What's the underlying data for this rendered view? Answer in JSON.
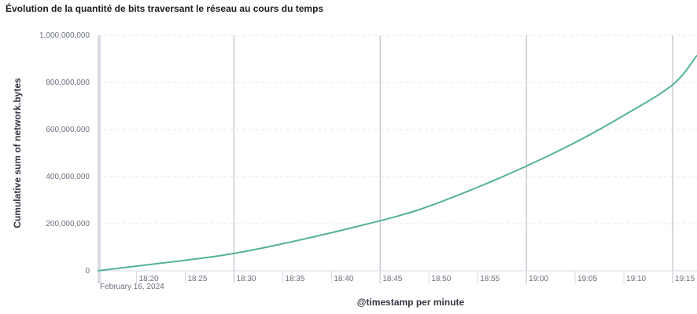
{
  "title": "Évolution de la quantité de bits traversant le réseau au cours du temps",
  "chart_data": {
    "type": "line",
    "title": "Évolution de la quantité de bits traversant le réseau au cours du temps",
    "xlabel": "@timestamp per minute",
    "ylabel": "Cumulative sum of network.bytes",
    "date_label": "February 16, 2024",
    "x_ticks": [
      "18:20",
      "18:25",
      "18:30",
      "18:35",
      "18:40",
      "18:45",
      "18:50",
      "18:55",
      "19:00",
      "19:05",
      "19:10",
      "19:15"
    ],
    "y_ticks": [
      "0",
      "200,000,000",
      "400,000,000",
      "600,000,000",
      "800,000,000",
      "1,000,000,000"
    ],
    "ylim": [
      0,
      1000000000
    ],
    "xlim": [
      "18:16",
      "19:17:30"
    ],
    "grid": "horizontal dashed, vertical solid every 15 minutes",
    "series": [
      {
        "color": "#54b399",
        "x": [
          "18:16",
          "18:22",
          "18:29",
          "18:35",
          "18:43",
          "18:49",
          "18:55",
          "19:00",
          "19:05",
          "19:10",
          "19:15",
          "19:17:30"
        ],
        "y": [
          0,
          30000000,
          67000000,
          115000000,
          192000000,
          260000000,
          355000000,
          445000000,
          545000000,
          660000000,
          790000000,
          915000000
        ]
      }
    ]
  }
}
